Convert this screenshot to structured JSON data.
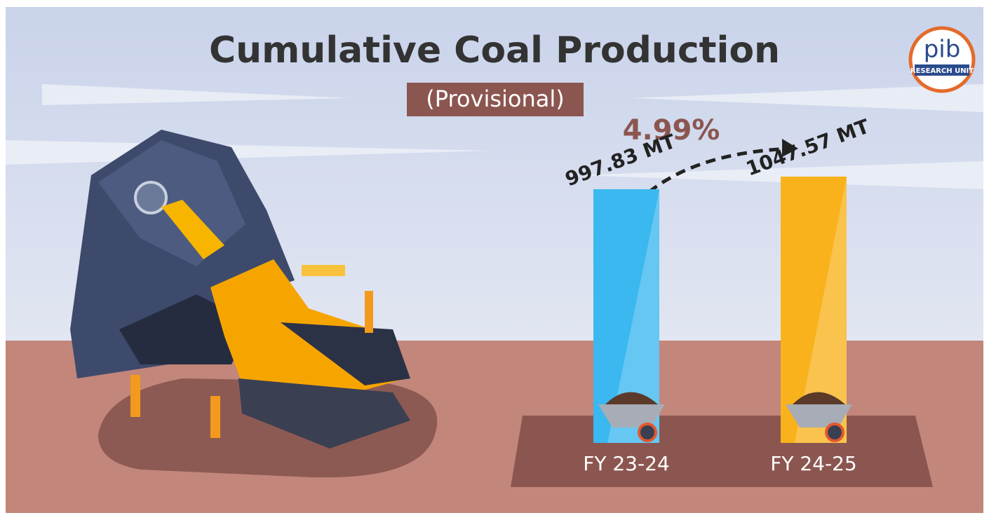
{
  "chart_data": {
    "type": "bar",
    "title": "Cumulative Coal Production",
    "subtitle": "(Provisional)",
    "annotation": "4.99%",
    "categories": [
      "FY 23-24",
      "FY 24-25"
    ],
    "values": [
      997.83,
      1047.57
    ],
    "value_labels": [
      "997.83 MT",
      "1047.57 MT"
    ],
    "colors": [
      "#3ab8ef",
      "#f9b21c"
    ]
  },
  "logo": {
    "text": "pib",
    "subtitle": "RESEARCH UNIT"
  }
}
